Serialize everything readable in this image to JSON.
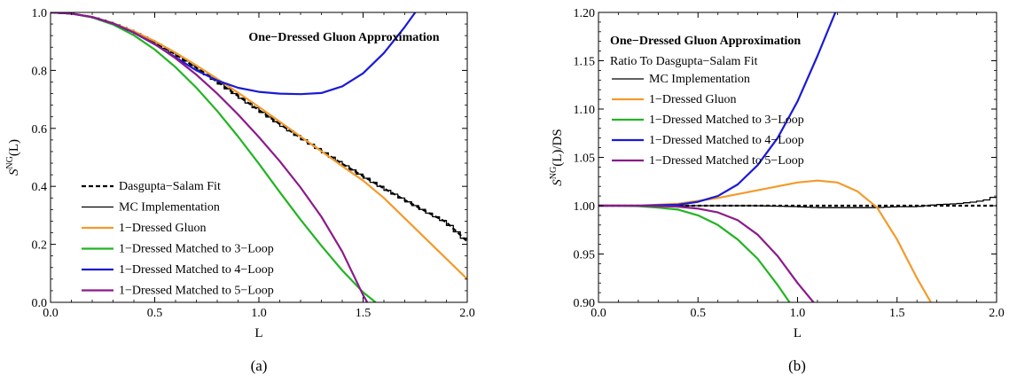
{
  "chart_data": [
    {
      "type": "line",
      "panel_label": "(a)",
      "xlabel": "L",
      "ylabel_main": "S",
      "ylabel_sup": "NG",
      "ylabel_tail": "(L)",
      "xlim": [
        0.0,
        2.0
      ],
      "ylim": [
        0.0,
        1.0
      ],
      "xticks": [
        "0.0",
        "0.5",
        "1.0",
        "1.5",
        "2.0"
      ],
      "yticks": [
        "0.0",
        "0.2",
        "0.4",
        "0.6",
        "0.8",
        "1.0"
      ],
      "annotations": [
        "One−Dressed Gluon Approximation"
      ],
      "legend_position": "bottom-left",
      "series": [
        {
          "name": "Dasgupta−Salam Fit",
          "color": "#000000",
          "dash": "5,3",
          "step": false,
          "x": [
            0,
            0.1,
            0.2,
            0.3,
            0.4,
            0.5,
            0.6,
            0.7,
            0.8,
            0.9,
            1.0,
            1.1,
            1.2,
            1.3,
            1.4,
            1.5,
            1.6,
            1.7,
            1.8,
            1.9,
            2.0
          ],
          "y": [
            1.0,
            0.996,
            0.984,
            0.962,
            0.933,
            0.897,
            0.855,
            0.809,
            0.761,
            0.712,
            0.663,
            0.615,
            0.568,
            0.523,
            0.478,
            0.435,
            0.393,
            0.353,
            0.314,
            0.276,
            0.21
          ]
        },
        {
          "name": "MC Implementation",
          "color": "#000000",
          "dash": "",
          "step": true,
          "x": [
            0,
            0.1,
            0.2,
            0.3,
            0.4,
            0.5,
            0.6,
            0.7,
            0.8,
            0.9,
            1.0,
            1.1,
            1.2,
            1.3,
            1.4,
            1.5,
            1.6,
            1.7,
            1.8,
            1.9,
            2.0
          ],
          "y": [
            1.0,
            0.996,
            0.984,
            0.962,
            0.933,
            0.897,
            0.855,
            0.809,
            0.761,
            0.712,
            0.663,
            0.615,
            0.568,
            0.523,
            0.478,
            0.435,
            0.393,
            0.353,
            0.314,
            0.276,
            0.21
          ]
        },
        {
          "name": "1−Dressed Gluon",
          "color": "#f39a2b",
          "dash": "",
          "step": false,
          "x": [
            0,
            0.1,
            0.2,
            0.3,
            0.4,
            0.5,
            0.6,
            0.7,
            0.8,
            0.9,
            1.0,
            1.1,
            1.2,
            1.3,
            1.4,
            1.5,
            1.6,
            1.7,
            1.8,
            1.9,
            2.0
          ],
          "y": [
            1.0,
            0.996,
            0.984,
            0.963,
            0.935,
            0.901,
            0.861,
            0.817,
            0.771,
            0.723,
            0.674,
            0.623,
            0.572,
            0.521,
            0.47,
            0.42,
            0.36,
            0.29,
            0.22,
            0.15,
            0.08
          ]
        },
        {
          "name": "1−Dressed Matched to 3−Loop",
          "color": "#22b422",
          "dash": "",
          "step": false,
          "x": [
            0,
            0.1,
            0.2,
            0.3,
            0.4,
            0.5,
            0.6,
            0.7,
            0.8,
            0.9,
            1.0,
            1.1,
            1.2,
            1.3,
            1.4,
            1.5,
            1.56
          ],
          "y": [
            1.0,
            0.996,
            0.983,
            0.958,
            0.921,
            0.872,
            0.811,
            0.74,
            0.66,
            0.572,
            0.478,
            0.38,
            0.285,
            0.195,
            0.11,
            0.035,
            0.0
          ]
        },
        {
          "name": "1−Dressed Matched to 4−Loop",
          "color": "#1a1ad6",
          "dash": "",
          "step": false,
          "x": [
            0,
            0.1,
            0.2,
            0.3,
            0.4,
            0.5,
            0.6,
            0.7,
            0.8,
            0.9,
            1.0,
            1.1,
            1.2,
            1.3,
            1.4,
            1.5,
            1.6,
            1.7,
            1.75
          ],
          "y": [
            1.0,
            0.996,
            0.984,
            0.962,
            0.93,
            0.89,
            0.845,
            0.8,
            0.765,
            0.74,
            0.726,
            0.72,
            0.718,
            0.722,
            0.745,
            0.79,
            0.86,
            0.95,
            1.0
          ]
        },
        {
          "name": "1−Dressed Matched to 5−Loop",
          "color": "#8b1a8b",
          "dash": "",
          "step": false,
          "x": [
            0,
            0.1,
            0.2,
            0.3,
            0.4,
            0.5,
            0.6,
            0.7,
            0.8,
            0.9,
            1.0,
            1.1,
            1.2,
            1.3,
            1.4,
            1.5,
            1.52
          ],
          "y": [
            1.0,
            0.996,
            0.984,
            0.962,
            0.931,
            0.891,
            0.842,
            0.785,
            0.72,
            0.648,
            0.57,
            0.487,
            0.396,
            0.295,
            0.175,
            0.025,
            0.0
          ]
        }
      ]
    },
    {
      "type": "line",
      "panel_label": "(b)",
      "xlabel": "L",
      "ylabel_main": "S",
      "ylabel_sup": "NG",
      "ylabel_tail": "(L)/DS",
      "xlim": [
        0.0,
        2.0
      ],
      "ylim": [
        0.9,
        1.2
      ],
      "xticks": [
        "0.0",
        "0.5",
        "1.0",
        "1.5",
        "2.0"
      ],
      "yticks": [
        "0.90",
        "0.95",
        "1.00",
        "1.05",
        "1.10",
        "1.15",
        "1.20"
      ],
      "annotations": [
        "One−Dressed Gluon Approximation",
        "Ratio To Dasgupta−Salam Fit"
      ],
      "legend_position": "top-left",
      "series": [
        {
          "name": "",
          "color": "#000000",
          "dash": "4,3",
          "step": false,
          "x": [
            0,
            2.0
          ],
          "y": [
            1.0,
            1.0
          ]
        },
        {
          "name": "MC Implementation",
          "color": "#000000",
          "dash": "",
          "step": true,
          "x": [
            0,
            0.2,
            0.4,
            0.6,
            0.8,
            1.0,
            1.1,
            1.2,
            1.3,
            1.4,
            1.5,
            1.6,
            1.7,
            1.8,
            1.9,
            1.95,
            2.0
          ],
          "y": [
            1.0,
            1.0,
            1.0,
            1.0,
            1.0,
            0.999,
            0.998,
            0.998,
            0.998,
            0.998,
            0.999,
            0.999,
            1.001,
            1.002,
            1.004,
            1.006,
            1.01
          ]
        },
        {
          "name": "1−Dressed Gluon",
          "color": "#f39a2b",
          "dash": "",
          "step": false,
          "x": [
            0,
            0.2,
            0.4,
            0.6,
            0.8,
            0.9,
            1.0,
            1.1,
            1.2,
            1.3,
            1.4,
            1.5,
            1.55,
            1.6,
            1.67
          ],
          "y": [
            1.0,
            1.0,
            1.002,
            1.008,
            1.016,
            1.02,
            1.024,
            1.026,
            1.024,
            1.015,
            0.998,
            0.965,
            0.945,
            0.925,
            0.9
          ]
        },
        {
          "name": "1−Dressed Matched to 3−Loop",
          "color": "#22b422",
          "dash": "",
          "step": false,
          "x": [
            0,
            0.1,
            0.2,
            0.3,
            0.4,
            0.5,
            0.6,
            0.7,
            0.8,
            0.9,
            0.96
          ],
          "y": [
            1.0,
            1.0,
            0.9995,
            0.998,
            0.996,
            0.99,
            0.98,
            0.965,
            0.945,
            0.918,
            0.9
          ]
        },
        {
          "name": "1−Dressed Matched to 4−Loop",
          "color": "#1a1ad6",
          "dash": "",
          "step": false,
          "x": [
            0,
            0.2,
            0.4,
            0.5,
            0.6,
            0.7,
            0.8,
            0.9,
            1.0,
            1.1,
            1.2
          ],
          "y": [
            1.0,
            1.0,
            1.001,
            1.004,
            1.01,
            1.022,
            1.042,
            1.07,
            1.108,
            1.155,
            1.205
          ]
        },
        {
          "name": "1−Dressed Matched to 5−Loop",
          "color": "#8b1a8b",
          "dash": "",
          "step": false,
          "x": [
            0,
            0.2,
            0.4,
            0.5,
            0.6,
            0.7,
            0.8,
            0.9,
            1.0,
            1.08
          ],
          "y": [
            1.0,
            1.0,
            0.999,
            0.997,
            0.993,
            0.985,
            0.97,
            0.948,
            0.92,
            0.9
          ]
        }
      ]
    }
  ]
}
